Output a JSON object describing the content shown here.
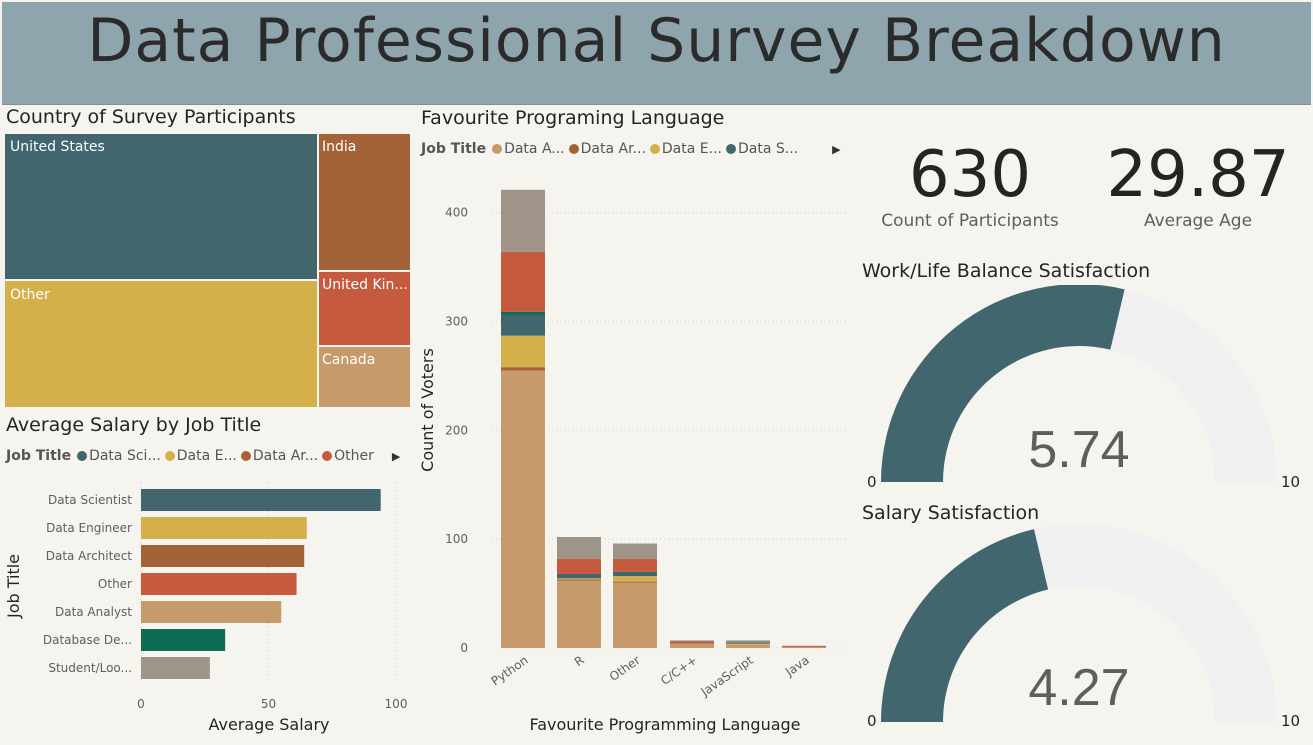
{
  "header": {
    "title": "Data Professional Survey Breakdown"
  },
  "treemap": {
    "title": "Country of Survey Participants",
    "cells": [
      {
        "label": "United States",
        "color": "#41666e"
      },
      {
        "label": "Other",
        "color": "#d3b04a"
      },
      {
        "label": "India",
        "color": "#a46337"
      },
      {
        "label": "United Kin...",
        "color": "#c55a3f"
      },
      {
        "label": "Canada",
        "color": "#c69a6b"
      }
    ]
  },
  "salary": {
    "title": "Average Salary by Job Title",
    "legend": {
      "title": "Job Title",
      "items": [
        {
          "label": "Data Sci...",
          "color": "#41666e"
        },
        {
          "label": "Data E...",
          "color": "#d3b04a"
        },
        {
          "label": "Data Ar...",
          "color": "#a46337"
        },
        {
          "label": "Other",
          "color": "#c55a3f"
        }
      ]
    }
  },
  "language": {
    "title": "Favourite Programing Language",
    "legend": {
      "title": "Job Title",
      "items": [
        {
          "label": "Data A...",
          "color": "#c69a6b"
        },
        {
          "label": "Data Ar...",
          "color": "#a46337"
        },
        {
          "label": "Data E...",
          "color": "#d3b04a"
        },
        {
          "label": "Data S...",
          "color": "#41666e"
        }
      ]
    }
  },
  "kpis": {
    "participants": {
      "value": "630",
      "label": "Count of Participants"
    },
    "age": {
      "value": "29.87",
      "label": "Average Age"
    }
  },
  "gauges": {
    "worklife": {
      "title": "Work/Life Balance Satisfaction",
      "value": 5.74,
      "value_text": "5.74",
      "min": "0",
      "max": "10",
      "fill": "#41666e"
    },
    "salary": {
      "title": "Salary Satisfaction",
      "value": 4.27,
      "value_text": "4.27",
      "min": "0",
      "max": "10",
      "fill": "#41666e"
    }
  },
  "chart_data": [
    {
      "type": "treemap",
      "title": "Country of Survey Participants",
      "categories": [
        "United States",
        "Other",
        "India",
        "United Kin...",
        "Canada"
      ],
      "values": [
        262,
        194,
        66,
        44,
        34
      ]
    },
    {
      "type": "bar",
      "orientation": "horizontal",
      "title": "Average Salary by Job Title",
      "categories": [
        "Data Scientist",
        "Data Engineer",
        "Data Architect",
        "Other",
        "Data Analyst",
        "Database De...",
        "Student/Loo..."
      ],
      "values": [
        94,
        65,
        64,
        61,
        55,
        33,
        27
      ],
      "colors": [
        "#41666e",
        "#d3b04a",
        "#a46337",
        "#c55a3f",
        "#c69a6b",
        "#0f6b54",
        "#9e9487"
      ],
      "xlabel": "Average Salary",
      "ylabel": "Job Title",
      "xticks": [
        0,
        50,
        100
      ],
      "xlim": [
        0,
        105
      ]
    },
    {
      "type": "bar",
      "stacked": true,
      "title": "Favourite Programing Language",
      "categories": [
        "Python",
        "R",
        "Other",
        "C/C++",
        "JavaScript",
        "Java"
      ],
      "series": [
        {
          "values": [
            255,
            62,
            60,
            4,
            3,
            1
          ],
          "color": "#c69a6b"
        },
        {
          "values": [
            3,
            1,
            1,
            0,
            0,
            0
          ],
          "color": "#a46337"
        },
        {
          "values": [
            29,
            1,
            5,
            0,
            1,
            0
          ],
          "color": "#d3b04a"
        },
        {
          "values": [
            19,
            4,
            3,
            0,
            1,
            0
          ],
          "color": "#41666e"
        },
        {
          "values": [
            3,
            0,
            1,
            0,
            0,
            0
          ],
          "color": "#0f6b54"
        },
        {
          "values": [
            55,
            14,
            12,
            2,
            0,
            1
          ],
          "color": "#c55a3f"
        },
        {
          "values": [
            57,
            20,
            14,
            1,
            2,
            0
          ],
          "color": "#9e9487"
        }
      ],
      "xlabel": "Favourite Programming Language",
      "ylabel": "Count of Voters",
      "yticks": [
        0,
        100,
        200,
        300,
        400
      ],
      "ylim": [
        0,
        430
      ]
    }
  ]
}
